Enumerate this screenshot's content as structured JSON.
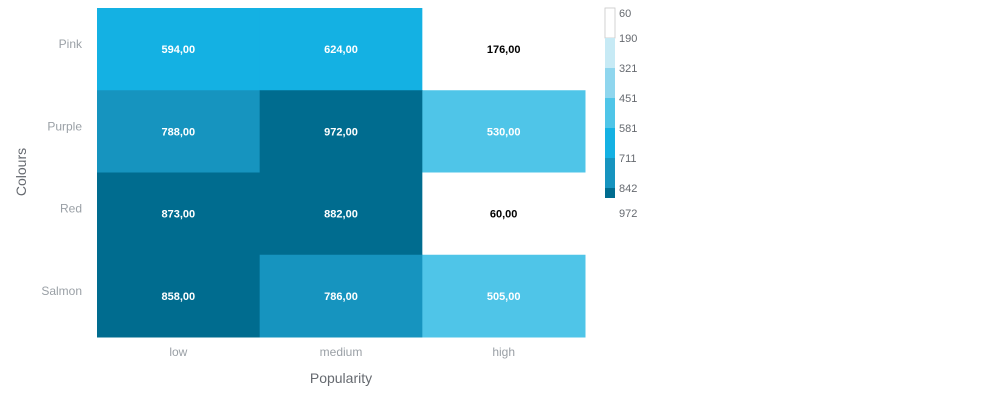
{
  "chart_data": {
    "type": "heatmap",
    "xlabel": "Popularity",
    "ylabel": "Colours",
    "x_categories": [
      "low",
      "medium",
      "high"
    ],
    "y_categories": [
      "Pink",
      "Purple",
      "Red",
      "Salmon"
    ],
    "values": [
      [
        594,
        624,
        176
      ],
      [
        788,
        972,
        530
      ],
      [
        873,
        882,
        60
      ],
      [
        858,
        786,
        505
      ]
    ],
    "value_labels": [
      [
        "594,00",
        "624,00",
        "176,00"
      ],
      [
        "788,00",
        "972,00",
        "530,00"
      ],
      [
        "873,00",
        "882,00",
        "60,00"
      ],
      [
        "858,00",
        "786,00",
        "505,00"
      ]
    ],
    "legend": {
      "placement": "right",
      "ticks": [
        "60",
        "190",
        "321",
        "451",
        "581",
        "711",
        "842",
        "972"
      ],
      "bounds": [
        60,
        190,
        321,
        451,
        581,
        711,
        842,
        972
      ],
      "colors": [
        "#ffffff",
        "#c7eaf5",
        "#8fd6ee",
        "#4fc5e8",
        "#14b1e3",
        "#1694bf",
        "#006c8f"
      ]
    }
  }
}
